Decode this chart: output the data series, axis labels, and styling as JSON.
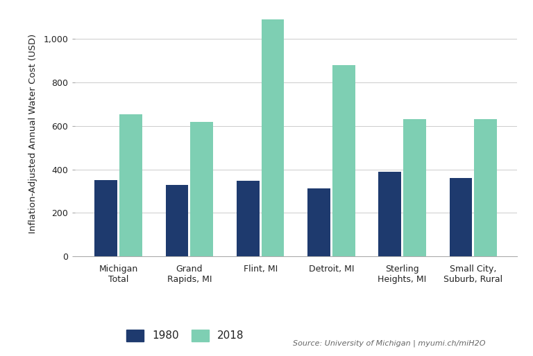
{
  "categories": [
    "Michigan\nTotal",
    "Grand\nRapids, MI",
    "Flint, MI",
    "Detroit, MI",
    "Sterling\nHeights, MI",
    "Small City,\nSuburb, Rural"
  ],
  "values_1980": [
    352,
    328,
    348,
    312,
    390,
    360
  ],
  "values_2018": [
    655,
    618,
    1090,
    880,
    630,
    632
  ],
  "color_1980": "#1e3a6e",
  "color_2018": "#7ecfb3",
  "ylabel": "Inflation-Adjusted Annual Water Cost (USD)",
  "yticks": [
    0,
    200,
    400,
    600,
    800,
    1000
  ],
  "ytick_labels": [
    "0",
    "200",
    "400",
    "600",
    "800",
    "1,000"
  ],
  "ymax": 1130,
  "legend_labels": [
    "1980",
    "2018"
  ],
  "source_text": "Source: University of Michigan | myumi.ch/miH2O",
  "background_color": "#ffffff",
  "grid_color": "#cccccc"
}
